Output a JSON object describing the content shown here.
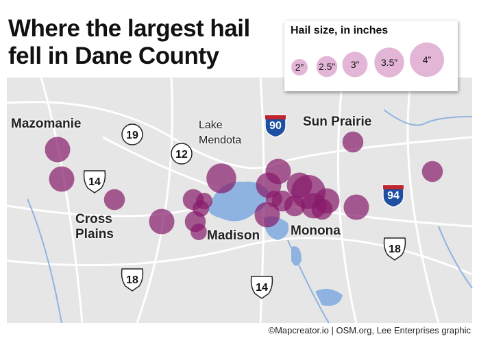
{
  "title": "Where the largest hail fell in Dane County",
  "legend": {
    "title": "Hail size, in inches",
    "sizes": [
      {
        "value": 2,
        "label": "2”"
      },
      {
        "value": 2.5,
        "label": "2.5”"
      },
      {
        "value": 3,
        "label": "3”"
      },
      {
        "value": 3.5,
        "label": "3.5”"
      },
      {
        "value": 4,
        "label": "4”"
      }
    ]
  },
  "places": {
    "mazomanie": "Mazomanie",
    "lake_mendota": "Lake Mendota",
    "sun_prairie": "Sun Prairie",
    "cross_plains": "Cross Plains",
    "madison": "Madison",
    "monona": "Monona"
  },
  "roads": [
    "19",
    "12",
    "14",
    "90",
    "94",
    "18",
    "14",
    "18"
  ],
  "hail_reports": [
    3,
    3,
    2.5,
    3,
    2.5,
    2,
    2,
    2.5,
    2,
    3.5,
    3,
    3,
    2.5,
    3,
    3,
    4,
    3,
    3,
    3,
    2.5,
    2.5,
    2,
    2.5,
    2.5
  ],
  "credit": "©Mapcreator.io | OSM.org, Lee Enterprises graphic"
}
